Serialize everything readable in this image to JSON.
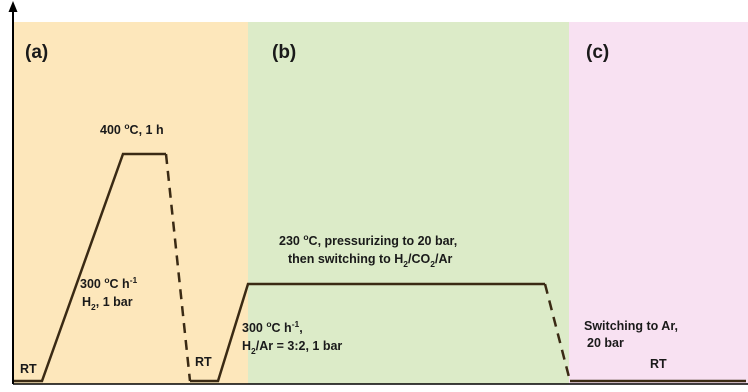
{
  "colors": {
    "panel_a": "#fde7bb",
    "panel_b": "#dcebc8",
    "panel_c": "#f8e1f2",
    "line": "#3a2a14",
    "axis": "#000000"
  },
  "panels": {
    "a": {
      "label": "(a)"
    },
    "b": {
      "label": "(b)"
    },
    "c": {
      "label": "(c)"
    }
  },
  "annotations": {
    "calcination_hold": {
      "line1_main": "400 ",
      "line1_sup": "o",
      "line1_rest": "C, 1 h"
    },
    "ramp_a": {
      "line1_main": "300 ",
      "line1_sup1": "o",
      "line1_mid": "C h",
      "line1_sup2": "-1",
      "line2_main": "H",
      "line2_sub": "2",
      "line2_rest": ", 1 bar"
    },
    "rt_start": "RT",
    "rt_middle": "RT",
    "ramp_b": {
      "line1_main": "300 ",
      "line1_sup1": "o",
      "line1_mid": "C h",
      "line1_sup2": "-1",
      "line1_end": ",",
      "line2_main": "H",
      "line2_sub": "2",
      "line2_rest": "/Ar = 3:2, 1 bar"
    },
    "reaction_hold": {
      "line1_main": "230 ",
      "line1_sup": "o",
      "line1_rest": "C, pressurizing to 20 bar,",
      "line2_a": "then switching to H",
      "line2_sub1": "2",
      "line2_b": "/CO",
      "line2_sub2": "2",
      "line2_c": "/Ar"
    },
    "switch_ar": {
      "line1": "Switching to Ar,",
      "line2": "20 bar"
    },
    "rt_end": "RT"
  }
}
